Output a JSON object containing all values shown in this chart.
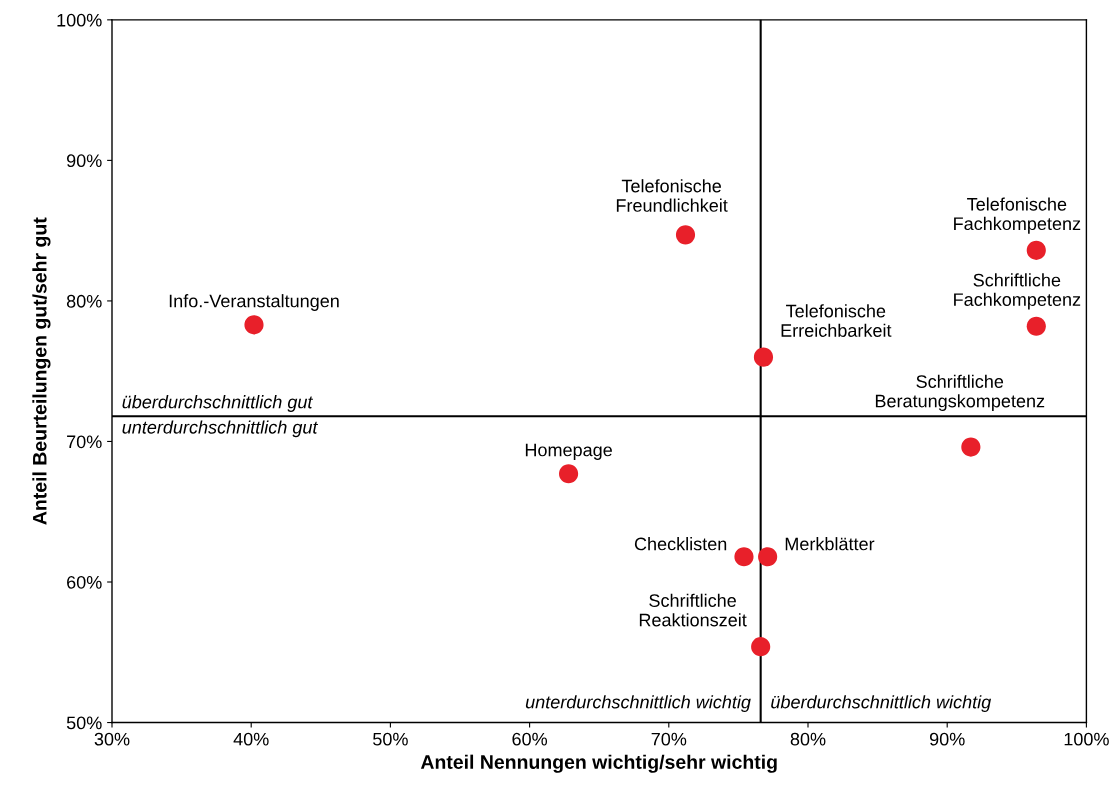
{
  "chart_data": {
    "type": "scatter",
    "xlabel": "Anteil Nennungen wichtig/sehr wichtig",
    "ylabel": "Anteil Beurteilungen gut/sehr gut",
    "x": [
      40.2,
      71.2,
      96.4,
      96.4,
      76.8,
      91.7,
      62.8,
      75.4,
      77.1,
      76.6
    ],
    "values": [
      78.3,
      84.7,
      83.6,
      78.2,
      76.0,
      69.6,
      67.7,
      61.8,
      61.8,
      55.4
    ],
    "color": "#e8202a",
    "marker": "circle",
    "grid": false,
    "xlim": [
      30,
      100
    ],
    "ylim": [
      50,
      100
    ],
    "xticks": [
      {
        "value": 30,
        "label": "30%"
      },
      {
        "value": 40,
        "label": "40%"
      },
      {
        "value": 50,
        "label": "50%"
      },
      {
        "value": 60,
        "label": "60%"
      },
      {
        "value": 70,
        "label": "70%"
      },
      {
        "value": 80,
        "label": "80%"
      },
      {
        "value": 90,
        "label": "90%"
      },
      {
        "value": 100,
        "label": "100%"
      }
    ],
    "yticks": [
      {
        "value": 50,
        "label": "50%"
      },
      {
        "value": 60,
        "label": "60%"
      },
      {
        "value": 70,
        "label": "70%"
      },
      {
        "value": 80,
        "label": "80%"
      },
      {
        "value": 90,
        "label": "90%"
      },
      {
        "value": 100,
        "label": "100%"
      }
    ],
    "ref_lines": [
      {
        "axis": "x",
        "value": 76.6,
        "color": "#000000"
      },
      {
        "axis": "y",
        "value": 71.8,
        "color": "#000000"
      }
    ],
    "annotations": [
      {
        "text": "Info.-Veranstaltungen",
        "x": 40.2,
        "y": 78.3
      },
      {
        "text": "Telefonische\nFreundlichkeit",
        "x": 71.2,
        "y": 84.7
      },
      {
        "text": "Telefonische\nFachkompetenz",
        "x": 96.4,
        "y": 83.6
      },
      {
        "text": "Schriftliche\nFachkompetenz",
        "x": 96.4,
        "y": 78.2
      },
      {
        "text": "Telefonische\nErreichbarkeit",
        "x": 76.8,
        "y": 76.0
      },
      {
        "text": "Schriftliche\nBeratungskompetenz",
        "x": 91.7,
        "y": 69.6
      },
      {
        "text": "Homepage",
        "x": 62.8,
        "y": 67.7
      },
      {
        "text": "Checklisten",
        "x": 75.4,
        "y": 61.8
      },
      {
        "text": "Merkblätter",
        "x": 77.1,
        "y": 61.8
      },
      {
        "text": "Schriftliche\nReaktionszeit",
        "x": 76.6,
        "y": 55.4
      },
      "überdurchschnittlich gut",
      "unterdurchschnittlich gut",
      "unterdurchschnittlich wichtig",
      "überdurchschnittlich wichtig"
    ]
  }
}
